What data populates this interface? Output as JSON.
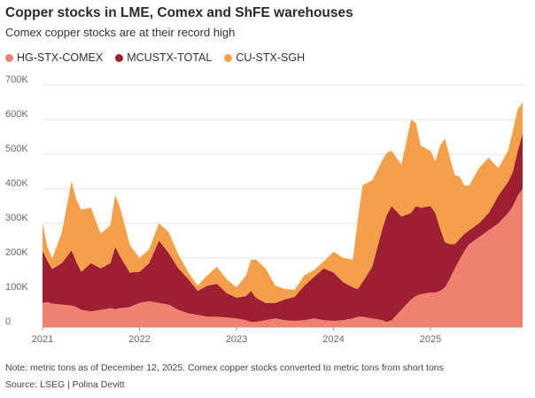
{
  "title": "Copper stocks in LME, Comex and ShFE warehouses",
  "subtitle": "Comex copper stocks are at their record high",
  "note": "Note: metric tons as of December 12, 2025. Comex copper stocks converted to metric tons from short tons",
  "source": "Source: LSEG | Polina Devitt",
  "colors": {
    "HG-STX-COMEX": "#f08070",
    "MCUSTX-TOTAL": "#9e1f32",
    "CU-STX-SGH": "#f4a04a"
  },
  "chart_data": {
    "type": "area",
    "stacked": true,
    "title": "Copper stocks in LME, Comex and ShFE warehouses",
    "subtitle": "Comex copper stocks are at their record high",
    "ylim": [
      0,
      700000
    ],
    "yticks": [
      0,
      100000,
      200000,
      300000,
      400000,
      500000,
      600000,
      700000
    ],
    "ytick_labels": [
      "0",
      "100K",
      "200K",
      "300K",
      "400K",
      "500K",
      "600K",
      "700K"
    ],
    "xlim": [
      2021.0,
      2025.95
    ],
    "xticks": [
      2021,
      2022,
      2023,
      2024,
      2025
    ],
    "xtick_labels": [
      "2021",
      "2022",
      "2023",
      "2024",
      "2025"
    ],
    "grid": "horizontal",
    "legend": "top-left",
    "x": [
      2021.0,
      2021.05,
      2021.1,
      2021.2,
      2021.3,
      2021.35,
      2021.4,
      2021.5,
      2021.6,
      2021.7,
      2021.75,
      2021.8,
      2021.9,
      2022.0,
      2022.1,
      2022.2,
      2022.3,
      2022.4,
      2022.5,
      2022.6,
      2022.7,
      2022.8,
      2022.9,
      2023.0,
      2023.1,
      2023.15,
      2023.2,
      2023.3,
      2023.4,
      2023.5,
      2023.6,
      2023.7,
      2023.8,
      2023.9,
      2024.0,
      2024.1,
      2024.2,
      2024.25,
      2024.3,
      2024.4,
      2024.5,
      2024.55,
      2024.6,
      2024.7,
      2024.8,
      2024.85,
      2024.9,
      2025.0,
      2025.05,
      2025.1,
      2025.15,
      2025.2,
      2025.25,
      2025.3,
      2025.35,
      2025.4,
      2025.5,
      2025.6,
      2025.7,
      2025.8,
      2025.85,
      2025.9,
      2025.95
    ],
    "series": [
      {
        "name": "HG-STX-COMEX",
        "values": [
          70000,
          72000,
          68000,
          65000,
          62000,
          58000,
          50000,
          45000,
          50000,
          55000,
          52000,
          55000,
          58000,
          70000,
          75000,
          70000,
          65000,
          50000,
          40000,
          35000,
          30000,
          30000,
          28000,
          25000,
          20000,
          15000,
          15000,
          20000,
          25000,
          20000,
          18000,
          20000,
          25000,
          20000,
          18000,
          20000,
          25000,
          30000,
          30000,
          25000,
          20000,
          15000,
          20000,
          50000,
          80000,
          90000,
          95000,
          100000,
          100000,
          105000,
          115000,
          140000,
          170000,
          195000,
          220000,
          240000,
          260000,
          280000,
          300000,
          330000,
          350000,
          380000,
          400000
        ]
      },
      {
        "name": "MCUSTX-TOTAL",
        "values": [
          150000,
          120000,
          100000,
          120000,
          160000,
          130000,
          110000,
          140000,
          120000,
          130000,
          180000,
          150000,
          100000,
          90000,
          110000,
          180000,
          150000,
          120000,
          100000,
          70000,
          90000,
          95000,
          70000,
          60000,
          70000,
          90000,
          70000,
          50000,
          45000,
          60000,
          70000,
          100000,
          120000,
          150000,
          140000,
          110000,
          90000,
          80000,
          100000,
          150000,
          260000,
          310000,
          330000,
          270000,
          250000,
          260000,
          250000,
          250000,
          230000,
          180000,
          130000,
          100000,
          70000,
          60000,
          50000,
          40000,
          40000,
          50000,
          80000,
          90000,
          100000,
          130000,
          160000
        ]
      },
      {
        "name": "CU-STX-SGH",
        "values": [
          80000,
          40000,
          30000,
          90000,
          200000,
          180000,
          180000,
          160000,
          100000,
          110000,
          150000,
          140000,
          80000,
          40000,
          40000,
          50000,
          60000,
          40000,
          20000,
          15000,
          30000,
          50000,
          40000,
          30000,
          60000,
          90000,
          110000,
          100000,
          50000,
          30000,
          20000,
          30000,
          20000,
          20000,
          60000,
          70000,
          80000,
          200000,
          280000,
          250000,
          200000,
          180000,
          160000,
          150000,
          270000,
          240000,
          180000,
          160000,
          150000,
          240000,
          300000,
          250000,
          200000,
          180000,
          140000,
          130000,
          160000,
          160000,
          80000,
          90000,
          120000,
          120000,
          90000
        ]
      }
    ]
  }
}
